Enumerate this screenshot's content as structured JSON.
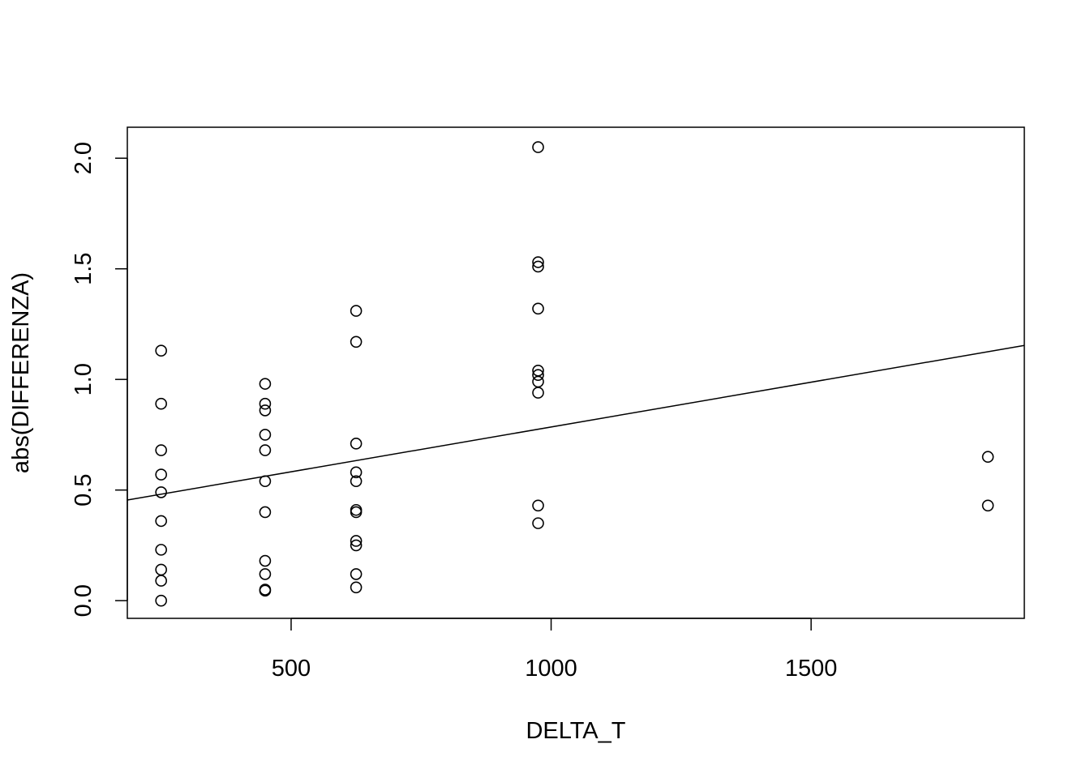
{
  "chart_data": {
    "type": "scatter",
    "title": "",
    "xlabel": "DELTA_T",
    "ylabel": "abs(DIFFERENZA)",
    "xlim": [
      185,
      1910
    ],
    "ylim": [
      -0.08,
      2.14
    ],
    "x_ticks": [
      500,
      1000,
      1500
    ],
    "y_ticks": [
      0.0,
      0.5,
      1.0,
      1.5,
      2.0
    ],
    "x_tick_labels": [
      "500",
      "1000",
      "1500"
    ],
    "y_tick_labels": [
      "0.0",
      "0.5",
      "1.0",
      "1.5",
      "2.0"
    ],
    "grid": false,
    "legend": "none",
    "point_style": "open-circle",
    "fit_line": {
      "type": "linear",
      "slope": 0.000405,
      "intercept": 0.38
    },
    "points": [
      {
        "x": 250,
        "y": 1.13
      },
      {
        "x": 250,
        "y": 0.89
      },
      {
        "x": 250,
        "y": 0.68
      },
      {
        "x": 250,
        "y": 0.57
      },
      {
        "x": 250,
        "y": 0.49
      },
      {
        "x": 250,
        "y": 0.36
      },
      {
        "x": 250,
        "y": 0.23
      },
      {
        "x": 250,
        "y": 0.14
      },
      {
        "x": 250,
        "y": 0.09
      },
      {
        "x": 250,
        "y": 0.0
      },
      {
        "x": 450,
        "y": 0.98
      },
      {
        "x": 450,
        "y": 0.89
      },
      {
        "x": 450,
        "y": 0.86
      },
      {
        "x": 450,
        "y": 0.75
      },
      {
        "x": 450,
        "y": 0.68
      },
      {
        "x": 450,
        "y": 0.54
      },
      {
        "x": 450,
        "y": 0.4
      },
      {
        "x": 450,
        "y": 0.18
      },
      {
        "x": 450,
        "y": 0.12
      },
      {
        "x": 450,
        "y": 0.05
      },
      {
        "x": 450,
        "y": 0.045
      },
      {
        "x": 625,
        "y": 1.31
      },
      {
        "x": 625,
        "y": 1.17
      },
      {
        "x": 625,
        "y": 0.71
      },
      {
        "x": 625,
        "y": 0.58
      },
      {
        "x": 625,
        "y": 0.54
      },
      {
        "x": 625,
        "y": 0.41
      },
      {
        "x": 625,
        "y": 0.4
      },
      {
        "x": 625,
        "y": 0.27
      },
      {
        "x": 625,
        "y": 0.25
      },
      {
        "x": 625,
        "y": 0.12
      },
      {
        "x": 625,
        "y": 0.06
      },
      {
        "x": 975,
        "y": 2.05
      },
      {
        "x": 975,
        "y": 1.53
      },
      {
        "x": 975,
        "y": 1.51
      },
      {
        "x": 975,
        "y": 1.32
      },
      {
        "x": 975,
        "y": 1.04
      },
      {
        "x": 975,
        "y": 1.02
      },
      {
        "x": 975,
        "y": 0.99
      },
      {
        "x": 975,
        "y": 0.94
      },
      {
        "x": 975,
        "y": 0.43
      },
      {
        "x": 975,
        "y": 0.35
      },
      {
        "x": 1840,
        "y": 0.65
      },
      {
        "x": 1840,
        "y": 0.43
      }
    ]
  }
}
